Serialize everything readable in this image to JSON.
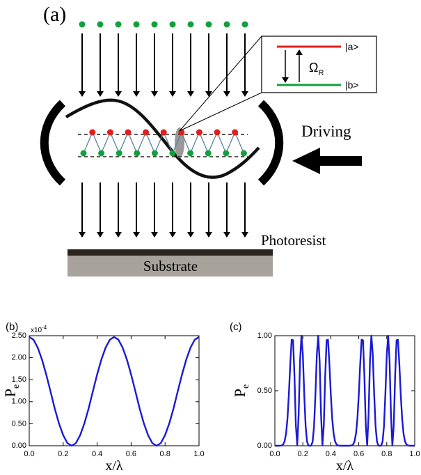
{
  "diagram": {
    "panel": "(a)",
    "upper_state": "|a>",
    "lower_state": "|b>",
    "rabi": {
      "symbol": "Ω",
      "sub": "R"
    },
    "driving": "Driving",
    "photoresist": "Photoresist",
    "substrate": "Substrate"
  },
  "chart_data": [
    {
      "type": "line",
      "panel": "(b)",
      "xlabel": "x/λ",
      "ylabel": {
        "text": "P",
        "sub": "e"
      },
      "multiplier": {
        "base": "x10",
        "exponent": "-4"
      },
      "x": [
        0,
        0.025,
        0.05,
        0.075,
        0.1,
        0.125,
        0.15,
        0.175,
        0.2,
        0.225,
        0.25,
        0.275,
        0.3,
        0.325,
        0.35,
        0.375,
        0.4,
        0.425,
        0.45,
        0.475,
        0.5,
        0.525,
        0.55,
        0.575,
        0.6,
        0.625,
        0.65,
        0.675,
        0.7,
        0.725,
        0.75,
        0.775,
        0.8,
        0.825,
        0.85,
        0.875,
        0.9,
        0.925,
        0.95,
        0.975,
        1
      ],
      "series": [
        {
          "color": "#1a1ad6",
          "values": [
            2.47,
            2.41,
            2.23,
            1.96,
            1.62,
            1.24,
            0.85,
            0.51,
            0.24,
            0.06,
            0,
            0.06,
            0.24,
            0.51,
            0.85,
            1.24,
            1.62,
            1.96,
            2.23,
            2.41,
            2.47,
            2.41,
            2.23,
            1.96,
            1.62,
            1.24,
            0.85,
            0.51,
            0.24,
            0.06,
            0,
            0.06,
            0.24,
            0.51,
            0.85,
            1.24,
            1.62,
            1.96,
            2.23,
            2.41,
            2.47
          ]
        }
      ],
      "xlim": [
        0,
        1
      ],
      "ylim": [
        0,
        2.5
      ],
      "xticks": [
        {
          "value": 0,
          "label": "0.0"
        },
        {
          "value": 0.2,
          "label": "0.2"
        },
        {
          "value": 0.4,
          "label": "0.4"
        },
        {
          "value": 0.6,
          "label": "0.6"
        },
        {
          "value": 0.8,
          "label": "0.8"
        },
        {
          "value": 1,
          "label": "1.0"
        }
      ],
      "yticks": [
        {
          "value": 0,
          "label": "0.00"
        },
        {
          "value": 0.5,
          "label": "0.50"
        },
        {
          "value": 1,
          "label": "1.00"
        },
        {
          "value": 1.5,
          "label": "1.50"
        },
        {
          "value": 2,
          "label": "2.00"
        },
        {
          "value": 2.5,
          "label": "2.50"
        }
      ]
    },
    {
      "type": "line",
      "panel": "(c)",
      "xlabel": "x/λ",
      "ylabel": {
        "text": "P",
        "sub": "e"
      },
      "x": [
        0,
        0.01,
        0.02,
        0.03,
        0.04,
        0.05,
        0.06,
        0.07,
        0.08,
        0.09,
        0.1,
        0.11,
        0.12,
        0.13,
        0.14,
        0.15,
        0.16,
        0.17,
        0.18,
        0.19,
        0.2,
        0.21,
        0.22,
        0.23,
        0.24,
        0.25,
        0.26,
        0.27,
        0.28,
        0.29,
        0.3,
        0.31,
        0.32,
        0.33,
        0.34,
        0.35,
        0.36,
        0.37,
        0.38,
        0.39,
        0.4,
        0.41,
        0.42,
        0.43,
        0.44,
        0.45,
        0.46,
        0.47,
        0.48,
        0.49,
        0.5,
        0.51,
        0.52,
        0.53,
        0.54,
        0.55,
        0.56,
        0.57,
        0.58,
        0.59,
        0.6,
        0.61,
        0.62,
        0.63,
        0.64,
        0.65,
        0.66,
        0.67,
        0.68,
        0.69,
        0.7,
        0.71,
        0.72,
        0.73,
        0.74,
        0.75,
        0.76,
        0.77,
        0.78,
        0.79,
        0.8,
        0.81,
        0.82,
        0.83,
        0.84,
        0.85,
        0.86,
        0.87,
        0.88,
        0.89,
        0.9,
        0.91,
        0.92,
        0.93,
        0.94,
        0.95,
        0.96,
        0.97,
        0.98,
        0.99,
        1
      ],
      "series": [
        {
          "color": "#1a1ad6",
          "values": [
            0,
            0,
            0,
            0,
            0.001,
            0.003,
            0.013,
            0.042,
            0.11,
            0.245,
            0.465,
            0.741,
            0.964,
            0.959,
            0.639,
            0.188,
            0.003,
            0.285,
            0.77,
            1,
            0.827,
            0.467,
            0.176,
            0.038,
            0.002,
            0,
            0.002,
            0.038,
            0.176,
            0.467,
            0.827,
            1,
            0.77,
            0.285,
            0.003,
            0.188,
            0.639,
            0.959,
            0.964,
            0.741,
            0.465,
            0.245,
            0.11,
            0.042,
            0.013,
            0.003,
            0.001,
            0,
            0,
            0,
            0,
            0,
            0,
            0,
            0.001,
            0.003,
            0.013,
            0.042,
            0.11,
            0.245,
            0.465,
            0.741,
            0.964,
            0.959,
            0.639,
            0.188,
            0.003,
            0.285,
            0.77,
            1,
            0.827,
            0.467,
            0.176,
            0.038,
            0.002,
            0,
            0.002,
            0.038,
            0.176,
            0.467,
            0.827,
            1,
            0.77,
            0.285,
            0.003,
            0.188,
            0.639,
            0.959,
            0.964,
            0.741,
            0.465,
            0.245,
            0.11,
            0.042,
            0.013,
            0.003,
            0.001,
            0,
            0,
            0,
            0
          ]
        }
      ],
      "xlim": [
        0,
        1
      ],
      "ylim": [
        0,
        1
      ],
      "xticks": [
        {
          "value": 0,
          "label": "0.0"
        },
        {
          "value": 0.2,
          "label": "0.2"
        },
        {
          "value": 0.4,
          "label": "0.4"
        },
        {
          "value": 0.6,
          "label": "0.6"
        },
        {
          "value": 0.8,
          "label": "0.8"
        },
        {
          "value": 1,
          "label": "1.0"
        }
      ],
      "yticks": [
        {
          "value": 0,
          "label": "0.00"
        },
        {
          "value": 0.5,
          "label": "0.50"
        },
        {
          "value": 1,
          "label": "1.00"
        }
      ]
    }
  ]
}
